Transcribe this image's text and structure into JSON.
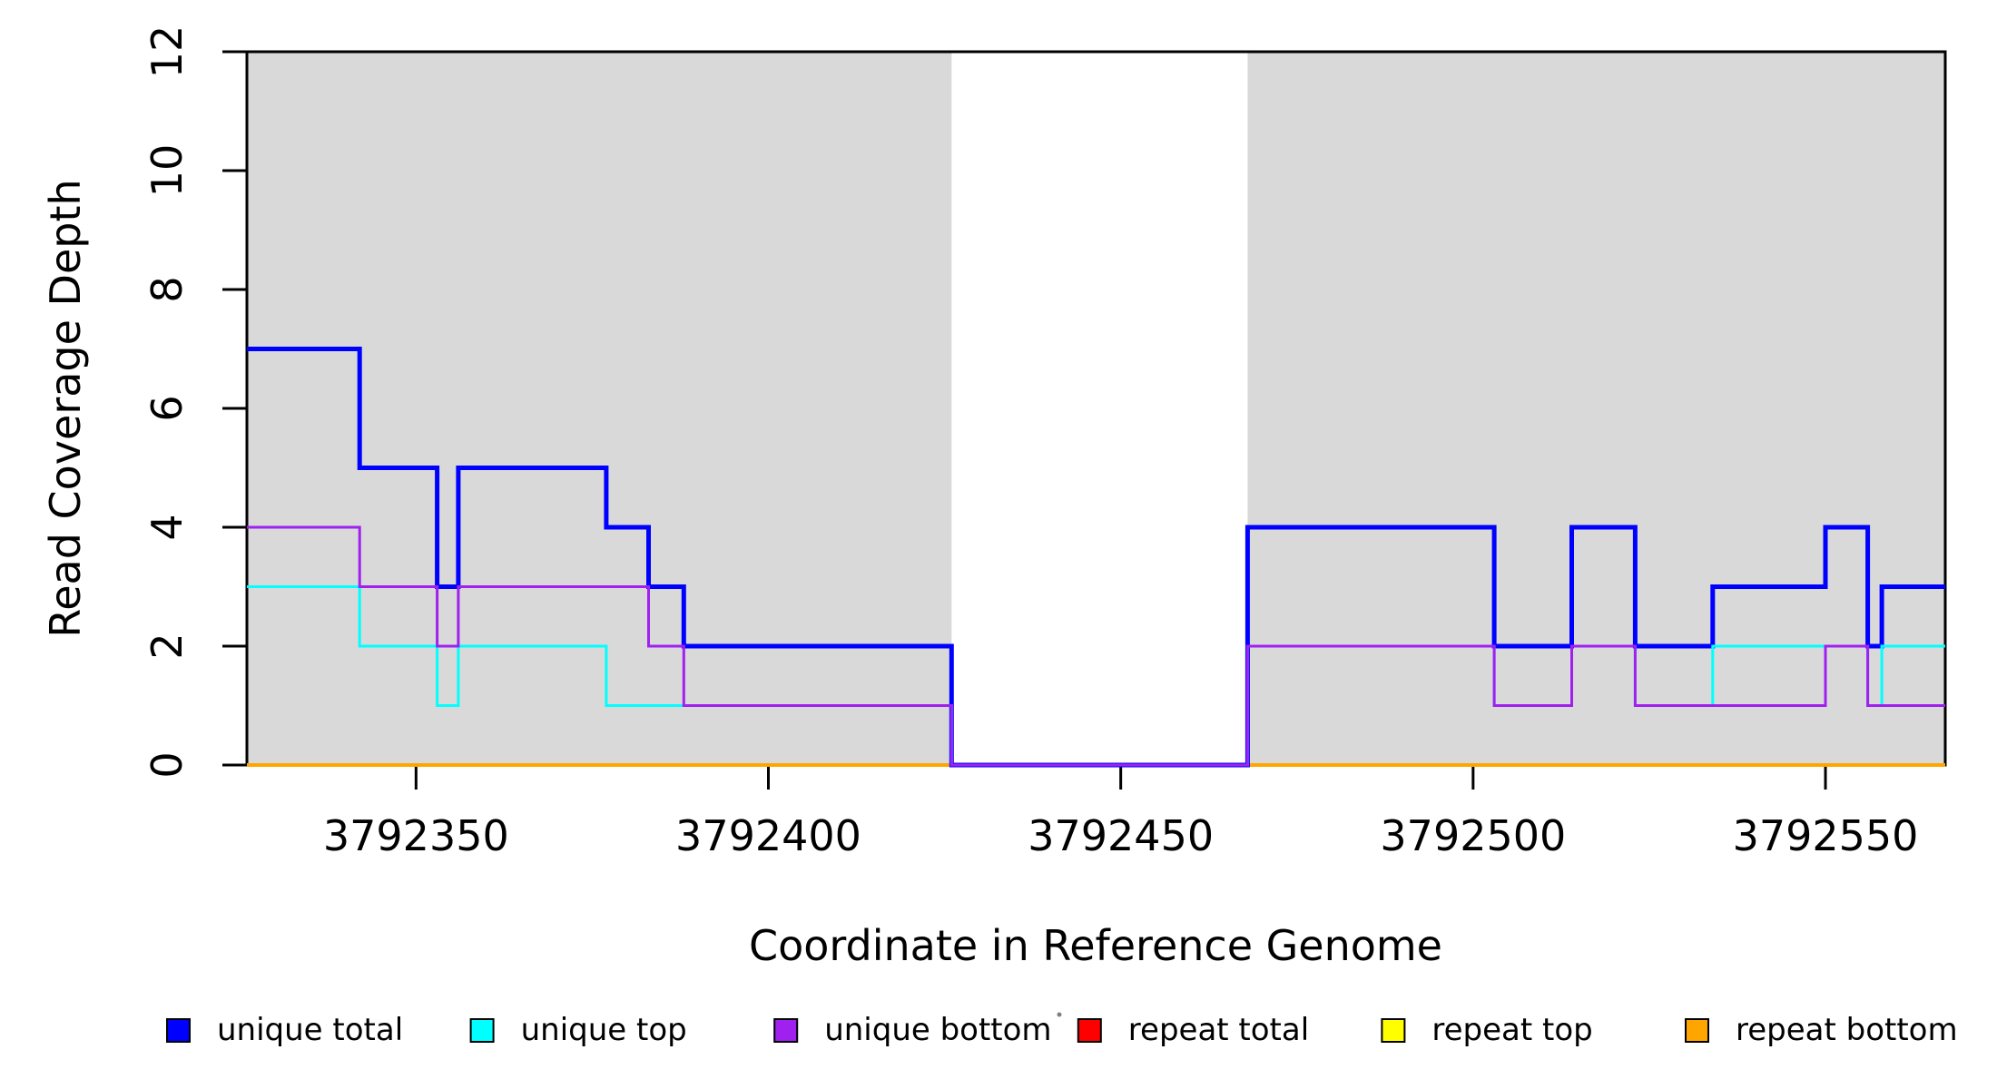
{
  "chart_data": {
    "type": "line",
    "subtype": "step-after",
    "title": "",
    "xlabel": "Coordinate in Reference Genome",
    "ylabel": "Read Coverage Depth",
    "xlim": [
      3792326,
      3792567
    ],
    "ylim": [
      0,
      12
    ],
    "x_ticks": [
      3792350,
      3792400,
      3792450,
      3792500,
      3792550
    ],
    "y_ticks": [
      0,
      2,
      4,
      6,
      8,
      10,
      12
    ],
    "grid": false,
    "shade_color": "#d9d9d9",
    "shaded_regions": [
      {
        "x0": 3792326,
        "x1": 3792426
      },
      {
        "x0": 3792468,
        "x1": 3792567
      }
    ],
    "series": [
      {
        "name": "repeat total",
        "color": "#ff0000",
        "width": 4,
        "steps": [
          [
            3792326,
            0
          ]
        ]
      },
      {
        "name": "repeat top",
        "color": "#ffff00",
        "width": 4,
        "steps": [
          [
            3792326,
            0
          ]
        ]
      },
      {
        "name": "repeat bottom",
        "color": "#ffa500",
        "width": 4,
        "steps": [
          [
            3792326,
            0
          ]
        ]
      },
      {
        "name": "unique total",
        "color": "#0000ff",
        "width": 5,
        "steps": [
          [
            3792326,
            7
          ],
          [
            3792342,
            5
          ],
          [
            3792353,
            3
          ],
          [
            3792356,
            5
          ],
          [
            3792377,
            4
          ],
          [
            3792383,
            3
          ],
          [
            3792388,
            2
          ],
          [
            3792426,
            0
          ],
          [
            3792468,
            4
          ],
          [
            3792503,
            2
          ],
          [
            3792514,
            4
          ],
          [
            3792523,
            2
          ],
          [
            3792534,
            3
          ],
          [
            3792550,
            4
          ],
          [
            3792556,
            2
          ],
          [
            3792558,
            3
          ]
        ]
      },
      {
        "name": "unique top",
        "color": "#00ffff",
        "width": 3,
        "steps": [
          [
            3792326,
            3
          ],
          [
            3792342,
            2
          ],
          [
            3792353,
            1
          ],
          [
            3792356,
            2
          ],
          [
            3792377,
            1
          ],
          [
            3792426,
            0
          ],
          [
            3792468,
            2
          ],
          [
            3792503,
            1
          ],
          [
            3792514,
            2
          ],
          [
            3792523,
            1
          ],
          [
            3792534,
            2
          ],
          [
            3792556,
            1
          ],
          [
            3792558,
            2
          ]
        ]
      },
      {
        "name": "unique bottom",
        "color": "#a020f0",
        "width": 3,
        "steps": [
          [
            3792326,
            4
          ],
          [
            3792342,
            3
          ],
          [
            3792353,
            2
          ],
          [
            3792356,
            3
          ],
          [
            3792383,
            2
          ],
          [
            3792388,
            1
          ],
          [
            3792426,
            0
          ],
          [
            3792468,
            2
          ],
          [
            3792503,
            1
          ],
          [
            3792514,
            2
          ],
          [
            3792523,
            1
          ],
          [
            3792550,
            2
          ],
          [
            3792556,
            1
          ]
        ]
      }
    ],
    "legend_position": "bottom"
  },
  "legend": {
    "items": [
      {
        "label": "unique total",
        "color": "#0000ff"
      },
      {
        "label": "unique top",
        "color": "#00ffff"
      },
      {
        "label": "unique bottom",
        "color": "#a020f0"
      },
      {
        "label": "repeat total",
        "color": "#ff0000"
      },
      {
        "label": "repeat top",
        "color": "#ffff00"
      },
      {
        "label": "repeat bottom",
        "color": "#ffa500"
      }
    ]
  },
  "style": {
    "axis_color": "#000000",
    "background": "#ffffff"
  }
}
